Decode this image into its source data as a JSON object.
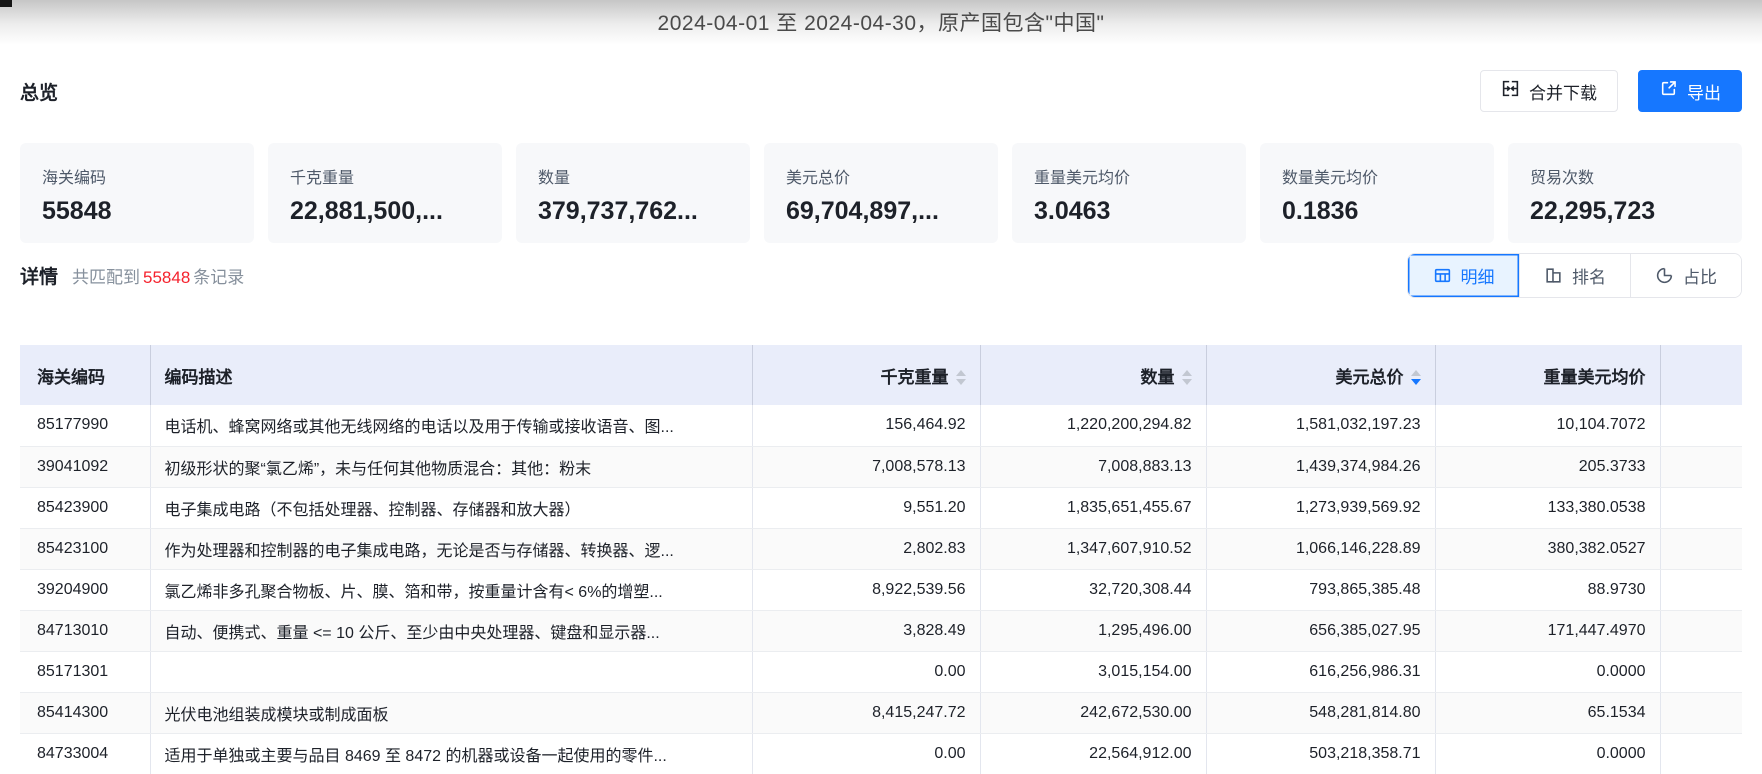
{
  "title_bar": {
    "text": "2024-04-01 至 2024-04-30，原产国包含\"中国\""
  },
  "colors": {
    "accent": "#1677ff",
    "red": "#f5222d",
    "header_bg": "#e9edfa",
    "card_bg": "#f7f8fa"
  },
  "overview": {
    "heading": "总览",
    "merge_download_label": "合并下载",
    "export_label": "导出",
    "stats": [
      {
        "label": "海关编码",
        "value": "55848"
      },
      {
        "label": "千克重量",
        "value": "22,881,500,..."
      },
      {
        "label": "数量",
        "value": "379,737,762..."
      },
      {
        "label": "美元总价",
        "value": "69,704,897,..."
      },
      {
        "label": "重量美元均价",
        "value": "3.0463"
      },
      {
        "label": "数量美元均价",
        "value": "0.1836"
      },
      {
        "label": "贸易次数",
        "value": "22,295,723"
      }
    ]
  },
  "details": {
    "heading": "详情",
    "match_prefix": "共匹配到",
    "match_count": "55848",
    "match_suffix": "条记录",
    "tabs": [
      {
        "id": "detail",
        "label": "明细",
        "icon": "table-icon",
        "active": true
      },
      {
        "id": "ranking",
        "label": "排名",
        "icon": "ranking-icon",
        "active": false
      },
      {
        "id": "proportion",
        "label": "占比",
        "icon": "pie-icon",
        "active": false
      }
    ]
  },
  "table": {
    "columns": [
      {
        "id": "code",
        "label": "海关编码",
        "align": "left",
        "sortable": false,
        "sort": null
      },
      {
        "id": "desc",
        "label": "编码描述",
        "align": "left",
        "sortable": false,
        "sort": null
      },
      {
        "id": "kg",
        "label": "千克重量",
        "align": "right",
        "sortable": true,
        "sort": null
      },
      {
        "id": "qty",
        "label": "数量",
        "align": "right",
        "sortable": true,
        "sort": null
      },
      {
        "id": "usd",
        "label": "美元总价",
        "align": "right",
        "sortable": true,
        "sort": "desc"
      },
      {
        "id": "avg",
        "label": "重量美元均价",
        "align": "right",
        "sortable": false,
        "sort": null
      },
      {
        "id": "spacer",
        "label": "",
        "align": "left",
        "sortable": false,
        "sort": null
      }
    ],
    "rows": [
      {
        "code": "85177990",
        "desc": "电话机、蜂窝网络或其他无线网络的电话以及用于传输或接收语音、图...",
        "kg": "156,464.92",
        "qty": "1,220,200,294.82",
        "usd": "1,581,032,197.23",
        "avg": "10,104.7072"
      },
      {
        "code": "39041092",
        "desc": "初级形状的聚“氯乙烯”，未与任何其他物质混合：其他：粉末",
        "kg": "7,008,578.13",
        "qty": "7,008,883.13",
        "usd": "1,439,374,984.26",
        "avg": "205.3733"
      },
      {
        "code": "85423900",
        "desc": "电子集成电路（不包括处理器、控制器、存储器和放大器）",
        "kg": "9,551.20",
        "qty": "1,835,651,455.67",
        "usd": "1,273,939,569.92",
        "avg": "133,380.0538"
      },
      {
        "code": "85423100",
        "desc": "作为处理器和控制器的电子集成电路，无论是否与存储器、转换器、逻...",
        "kg": "2,802.83",
        "qty": "1,347,607,910.52",
        "usd": "1,066,146,228.89",
        "avg": "380,382.0527"
      },
      {
        "code": "39204900",
        "desc": "氯乙烯非多孔聚合物板、片、膜、箔和带，按重量计含有< 6%的增塑...",
        "kg": "8,922,539.56",
        "qty": "32,720,308.44",
        "usd": "793,865,385.48",
        "avg": "88.9730"
      },
      {
        "code": "84713010",
        "desc": "自动、便携式、重量 <= 10 公斤、至少由中央处理器、键盘和显示器...",
        "kg": "3,828.49",
        "qty": "1,295,496.00",
        "usd": "656,385,027.95",
        "avg": "171,447.4970"
      },
      {
        "code": "85171301",
        "desc": "",
        "kg": "0.00",
        "qty": "3,015,154.00",
        "usd": "616,256,986.31",
        "avg": "0.0000"
      },
      {
        "code": "85414300",
        "desc": "光伏电池组装成模块或制成面板",
        "kg": "8,415,247.72",
        "qty": "242,672,530.00",
        "usd": "548,281,814.80",
        "avg": "65.1534"
      },
      {
        "code": "84733004",
        "desc": "适用于单独或主要与品目 8469 至 8472 的机器或设备一起使用的零件...",
        "kg": "0.00",
        "qty": "22,564,912.00",
        "usd": "503,218,358.71",
        "avg": "0.0000"
      }
    ]
  }
}
